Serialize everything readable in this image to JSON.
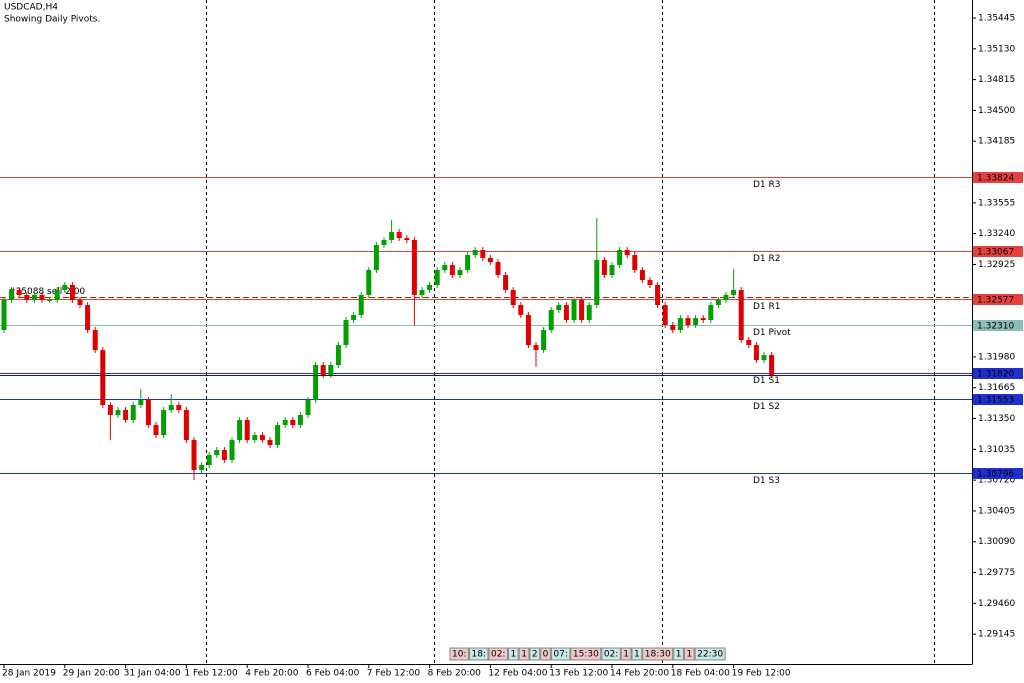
{
  "chart_data": {
    "type": "candlestick",
    "title": "USDCAD,H4",
    "subtitle": "Showing Daily Pivots.",
    "up_color": "#00a000",
    "down_color": "#e00000",
    "ylim": [
      1.2884,
      1.35629
    ],
    "yticks": [
      1.35445,
      {
        "value": 1.3513,
        "label": "1.35130"
      },
      1.34815,
      {
        "value": 1.345,
        "label": "1.34500"
      },
      1.34185,
      1.33555,
      {
        "value": 1.3324,
        "label": "1.33240"
      },
      1.32925,
      {
        "value": 1.3198,
        "label": "1.31980"
      },
      1.31665,
      {
        "value": 1.3135,
        "label": "1.31350"
      },
      1.31035,
      {
        "value": 1.3072,
        "label": "1.30720"
      },
      1.30405,
      {
        "value": 1.3009,
        "label": "1.30090"
      },
      1.29775,
      {
        "value": 1.2946,
        "label": "1.29460"
      },
      1.29145
    ],
    "categories": [
      "28 Jan 2019",
      null,
      null,
      null,
      null,
      null,
      null,
      null,
      "29 Jan 20:00",
      null,
      null,
      null,
      null,
      null,
      null,
      null,
      "31 Jan 04:00",
      null,
      null,
      null,
      null,
      null,
      null,
      null,
      "1 Feb 12:00",
      null,
      null,
      null,
      null,
      null,
      null,
      null,
      "4 Feb 20:00",
      null,
      null,
      null,
      null,
      null,
      null,
      null,
      "6 Feb 04:00",
      null,
      null,
      null,
      null,
      null,
      null,
      null,
      "7 Feb 12:00",
      null,
      null,
      null,
      null,
      null,
      null,
      null,
      "8 Feb 20:00",
      null,
      null,
      null,
      null,
      null,
      null,
      null,
      "12 Feb 04:00",
      null,
      null,
      null,
      null,
      null,
      null,
      null,
      "13 Feb 12:00",
      null,
      null,
      null,
      null,
      null,
      null,
      null,
      "14 Feb 20:00",
      null,
      null,
      null,
      null,
      null,
      null,
      null,
      "18 Feb 04:00",
      null,
      null,
      null,
      null,
      null,
      null,
      null,
      "19 Feb 12:00",
      null,
      null,
      null,
      null,
      null
    ],
    "open": [
      1.32255,
      1.32562,
      1.32664,
      1.32613,
      1.32562,
      1.32613,
      1.32562,
      1.32562,
      1.32664,
      1.32715,
      1.32562,
      1.3251,
      1.32255,
      1.3205,
      1.31488,
      1.31386,
      1.31437,
      1.31335,
      1.31488,
      1.31539,
      1.31283,
      1.31181,
      1.31437,
      1.31488,
      1.31437,
      1.3113,
      1.30823,
      1.30874,
      1.30977,
      1.31028,
      1.30926,
      1.3113,
      1.31335,
      1.3113,
      1.31181,
      1.3113,
      1.31079,
      1.31283,
      1.31335,
      1.31283,
      1.31386,
      1.31539,
      1.31897,
      1.31795,
      1.31897,
      1.32101,
      1.32357,
      1.32408,
      1.32613,
      1.32868,
      1.33124,
      1.33175,
      1.33257,
      1.33195,
      1.33175,
      1.32613,
      1.32664,
      1.32715,
      1.32868,
      1.32919,
      1.32817,
      1.32868,
      1.33022,
      1.33073,
      1.32991,
      1.3295,
      1.32817,
      1.32664,
      1.3251,
      1.32408,
      1.32101,
      1.3205,
      1.32255,
      1.32459,
      1.3251,
      1.32357,
      1.32562,
      1.32357,
      1.3251,
      1.32971,
      1.32817,
      1.32919,
      1.33073,
      1.33022,
      1.32868,
      1.32766,
      1.32715,
      1.3251,
      1.32306,
      1.32255,
      1.32377,
      1.32306,
      1.32377,
      1.32357,
      1.3251,
      1.32562,
      1.32613,
      1.32664,
      1.32153,
      1.32101,
      1.31948,
      1.31999
    ],
    "high": [
      1.32592,
      1.32694,
      1.32694,
      1.32643,
      1.32643,
      1.32643,
      1.32592,
      1.32694,
      1.32745,
      1.32745,
      1.32592,
      1.3254,
      1.32285,
      1.3208,
      1.31518,
      1.31467,
      1.31467,
      1.31518,
      1.3165,
      1.31569,
      1.31313,
      1.31467,
      1.316,
      1.31518,
      1.31467,
      1.3116,
      1.30904,
      1.31007,
      1.31058,
      1.31058,
      1.3116,
      1.31365,
      1.31365,
      1.31211,
      1.31211,
      1.3116,
      1.31313,
      1.31365,
      1.31365,
      1.31416,
      1.31569,
      1.31927,
      1.31927,
      1.31927,
      1.32131,
      1.32387,
      1.32438,
      1.32643,
      1.32898,
      1.33154,
      1.33205,
      1.3338,
      1.33287,
      1.33225,
      1.33205,
      1.32694,
      1.32745,
      1.32898,
      1.32949,
      1.32949,
      1.32898,
      1.33052,
      1.33103,
      1.33103,
      1.33021,
      1.3298,
      1.32847,
      1.32694,
      1.3254,
      1.32438,
      1.32131,
      1.32285,
      1.32489,
      1.3254,
      1.3254,
      1.32592,
      1.32592,
      1.3254,
      1.334,
      1.33001,
      1.32949,
      1.33103,
      1.33103,
      1.33052,
      1.32898,
      1.32796,
      1.32745,
      1.3254,
      1.32336,
      1.32407,
      1.32407,
      1.32407,
      1.32407,
      1.3254,
      1.32592,
      1.32643,
      1.3288,
      1.32694,
      1.32183,
      1.32131,
      1.32029,
      1.32029
    ],
    "low": [
      1.32225,
      1.32532,
      1.32583,
      1.32532,
      1.32532,
      1.32532,
      1.32532,
      1.32532,
      1.32634,
      1.32532,
      1.3248,
      1.32225,
      1.3202,
      1.31458,
      1.3113,
      1.31356,
      1.31305,
      1.31305,
      1.31458,
      1.31253,
      1.31151,
      1.31151,
      1.31407,
      1.31407,
      1.311,
      1.3072,
      1.30793,
      1.30844,
      1.30947,
      1.30896,
      1.30896,
      1.311,
      1.311,
      1.311,
      1.311,
      1.31049,
      1.31049,
      1.31253,
      1.31253,
      1.31253,
      1.31356,
      1.31509,
      1.31765,
      1.31765,
      1.31867,
      1.32071,
      1.32327,
      1.32378,
      1.32583,
      1.32838,
      1.33094,
      1.33145,
      1.33165,
      1.33145,
      1.323,
      1.32583,
      1.32634,
      1.32685,
      1.32838,
      1.32787,
      1.32787,
      1.32838,
      1.32992,
      1.32961,
      1.3292,
      1.32787,
      1.32634,
      1.3248,
      1.32378,
      1.32071,
      1.3188,
      1.3202,
      1.32225,
      1.32429,
      1.32327,
      1.32327,
      1.32327,
      1.32327,
      1.3248,
      1.32787,
      1.32787,
      1.32889,
      1.32992,
      1.32838,
      1.32736,
      1.32685,
      1.3248,
      1.32276,
      1.32225,
      1.32225,
      1.32276,
      1.32276,
      1.32327,
      1.32327,
      1.3248,
      1.32532,
      1.32583,
      1.32123,
      1.32071,
      1.31918,
      1.31918,
      1.31765
    ],
    "close": [
      1.32562,
      1.32664,
      1.32613,
      1.32562,
      1.32613,
      1.32562,
      1.32562,
      1.32664,
      1.32715,
      1.32562,
      1.3251,
      1.32255,
      1.3205,
      1.31488,
      1.31386,
      1.31437,
      1.31335,
      1.31488,
      1.31539,
      1.31283,
      1.31181,
      1.31437,
      1.31488,
      1.31437,
      1.3113,
      1.30823,
      1.30874,
      1.30977,
      1.31028,
      1.30926,
      1.3113,
      1.31335,
      1.3113,
      1.31181,
      1.3113,
      1.31079,
      1.31283,
      1.31335,
      1.31283,
      1.31386,
      1.31539,
      1.31897,
      1.31795,
      1.31897,
      1.32101,
      1.32357,
      1.32408,
      1.32613,
      1.32868,
      1.33124,
      1.33175,
      1.33257,
      1.33195,
      1.33175,
      1.32613,
      1.32664,
      1.32715,
      1.32868,
      1.32919,
      1.32817,
      1.32868,
      1.33022,
      1.33073,
      1.32991,
      1.3295,
      1.32817,
      1.32664,
      1.3251,
      1.32408,
      1.32101,
      1.3205,
      1.32255,
      1.32459,
      1.3251,
      1.32357,
      1.32562,
      1.32357,
      1.3251,
      1.32971,
      1.32817,
      1.32919,
      1.33073,
      1.33022,
      1.32868,
      1.32766,
      1.32715,
      1.3251,
      1.32306,
      1.32255,
      1.32377,
      1.32306,
      1.32377,
      1.32357,
      1.3251,
      1.32562,
      1.32613,
      1.32664,
      1.32153,
      1.32101,
      1.31948,
      1.31999,
      1.31795
    ],
    "levels": [
      {
        "name": "D1 R3",
        "value": 1.33824,
        "color": "#e84040"
      },
      {
        "name": "D1 R2",
        "value": 1.33067,
        "color": "#e84040"
      },
      {
        "name": "D1 R1",
        "value": 1.32577,
        "color": "#e84040"
      },
      {
        "name": "D1 Pivot",
        "value": 1.3231,
        "value_label": "1.32310",
        "color": "#8cbcbc"
      },
      {
        "name": "D1 S1",
        "value": 1.3182,
        "value_label": "1.31820",
        "color": "#2030d0"
      },
      {
        "name": "D1 S2",
        "value": 1.31553,
        "color": "#2030d0"
      },
      {
        "name": "D1 S3",
        "value": 1.30796,
        "color": "#2030d0"
      }
    ],
    "trade": {
      "label": "#35088 sell 2.00",
      "price": 1.3259,
      "color": "#a03000"
    },
    "bottom_labels": [
      "10:",
      "18:",
      "02:",
      "1",
      "1",
      "2",
      "0",
      "07:",
      "15:30",
      "02:",
      "1",
      "1",
      "18:30",
      "1",
      "1",
      "22:30"
    ]
  }
}
